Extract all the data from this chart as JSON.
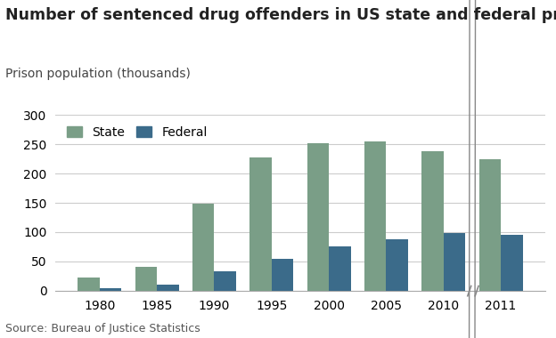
{
  "title": "Number of sentenced drug offenders in US state and federal prisons",
  "ylabel": "Prison population (thousands)",
  "source": "Source: Bureau of Justice Statistics",
  "years": [
    1980,
    1985,
    1990,
    1995,
    2000,
    2005,
    2010,
    2011
  ],
  "state_values": [
    22,
    40,
    149,
    227,
    252,
    254,
    238,
    224
  ],
  "federal_values": [
    5,
    10,
    33,
    54,
    75,
    87,
    99,
    96
  ],
  "state_color": "#7a9e87",
  "federal_color": "#3b6b8a",
  "background_color": "#ffffff",
  "ylim": [
    0,
    300
  ],
  "yticks": [
    0,
    50,
    100,
    150,
    200,
    250,
    300
  ],
  "bar_width": 0.38,
  "legend_labels": [
    "State",
    "Federal"
  ],
  "title_fontsize": 12.5,
  "label_fontsize": 10,
  "tick_fontsize": 10,
  "source_fontsize": 9
}
